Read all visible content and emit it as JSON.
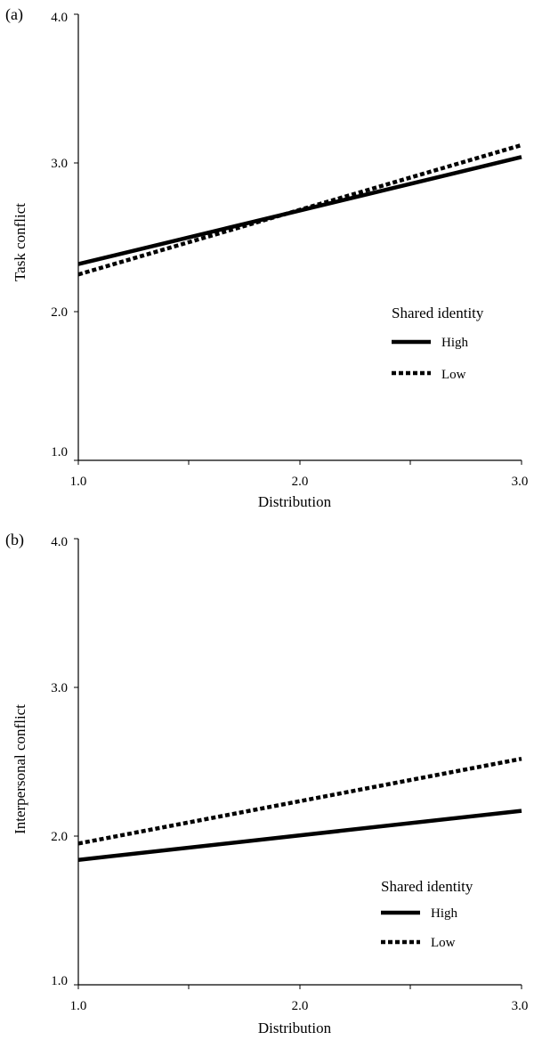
{
  "chart_data": [
    {
      "type": "line",
      "panel_label": "(a)",
      "xlabel": "Distribution",
      "ylabel": "Task conflict",
      "xlim": [
        1.0,
        3.0
      ],
      "ylim": [
        1.0,
        4.0
      ],
      "x_ticks": [
        "1.0",
        "2.0",
        "3.0"
      ],
      "y_ticks": [
        "1.0",
        "2.0",
        "3.0",
        "4.0"
      ],
      "x": [
        1.0,
        3.0
      ],
      "legend": {
        "title": "Shared identity",
        "placement": "right"
      },
      "series": [
        {
          "name": "High",
          "style": "solid",
          "values": [
            2.32,
            3.04
          ]
        },
        {
          "name": "Low",
          "style": "dotted",
          "values": [
            2.25,
            3.12
          ]
        }
      ]
    },
    {
      "type": "line",
      "panel_label": "(b)",
      "xlabel": "Distribution",
      "ylabel": "Interpersonal conflict",
      "xlim": [
        1.0,
        3.0
      ],
      "ylim": [
        1.0,
        4.0
      ],
      "x_ticks": [
        "1.0",
        "2.0",
        "3.0"
      ],
      "y_ticks": [
        "1.0",
        "2.0",
        "3.0",
        "4.0"
      ],
      "x": [
        1.0,
        3.0
      ],
      "legend": {
        "title": "Shared identity",
        "placement": "lower-right"
      },
      "series": [
        {
          "name": "High",
          "style": "solid",
          "values": [
            1.84,
            2.17
          ]
        },
        {
          "name": "Low",
          "style": "dotted",
          "values": [
            1.95,
            2.52
          ]
        }
      ]
    }
  ]
}
